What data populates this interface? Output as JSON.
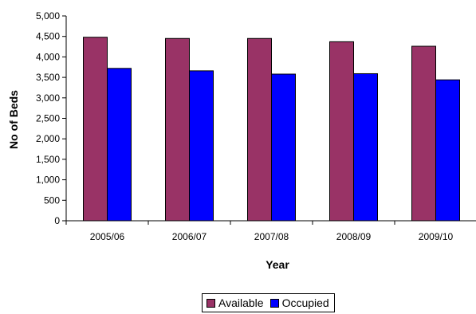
{
  "chart_data": {
    "type": "bar",
    "title": "",
    "xlabel": "Year",
    "ylabel": "No of Beds",
    "categories": [
      "2005/06",
      "2006/07",
      "2007/08",
      "2008/09",
      "2009/10"
    ],
    "series": [
      {
        "name": "Available",
        "color": "#993366",
        "values": [
          4480,
          4450,
          4450,
          4370,
          4260
        ]
      },
      {
        "name": "Occupied",
        "color": "#0000FF",
        "values": [
          3720,
          3660,
          3580,
          3590,
          3440
        ]
      }
    ],
    "ylim": [
      0,
      5000
    ],
    "yticks": [
      0,
      500,
      1000,
      1500,
      2000,
      2500,
      3000,
      3500,
      4000,
      4500,
      5000
    ],
    "ytick_labels": [
      "0",
      "500",
      "1,000",
      "1,500",
      "2,000",
      "2,500",
      "3,000",
      "3,500",
      "4,000",
      "4,500",
      "5,000"
    ],
    "grid": false,
    "legend_position": "bottom-center"
  }
}
